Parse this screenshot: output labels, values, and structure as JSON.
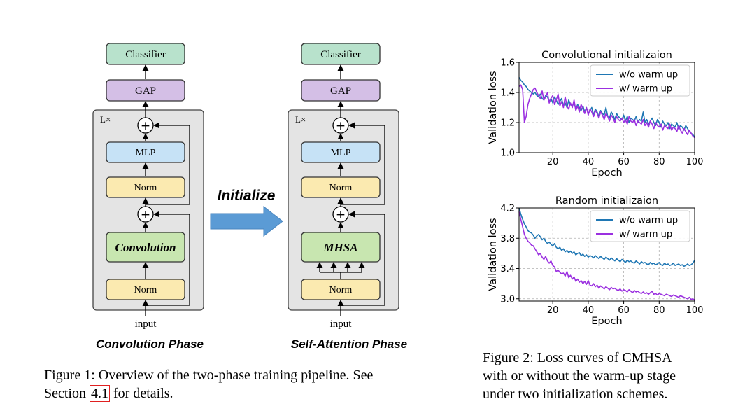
{
  "figure1": {
    "phases": [
      {
        "id": "conv",
        "title": "Convolution Phase",
        "repeat_label": "L×",
        "blocks": {
          "classifier": "Classifier",
          "gap": "GAP",
          "mlp": "MLP",
          "norm_top": "Norm",
          "mixer": "Convolution",
          "norm_bottom": "Norm"
        },
        "input_label": "input"
      },
      {
        "id": "attn",
        "title": "Self-Attention Phase",
        "repeat_label": "L×",
        "blocks": {
          "classifier": "Classifier",
          "gap": "GAP",
          "mlp": "MLP",
          "norm_top": "Norm",
          "mixer": "MHSA",
          "norm_bottom": "Norm"
        },
        "input_label": "input"
      }
    ],
    "arrow_label": "Initialize",
    "plus_symbol": "+",
    "caption_prefix": "Figure 1:  Overview of the two-phase training pipeline.  See Section",
    "caption_ref": "4.1",
    "caption_suffix": " for details.",
    "colors": {
      "classifier": "#b8e2cc",
      "gap": "#d4bfe6",
      "mlp": "#c6e2f6",
      "norm": "#fbeab0",
      "mixer": "#c8e6b0",
      "panel": "#e4e4e4",
      "arrow": "#5b9bd5"
    }
  },
  "chart_data": [
    {
      "type": "line",
      "title": "Convolutional initializaion",
      "xlabel": "Epoch",
      "ylabel": "Validation loss",
      "xlim": [
        1,
        100
      ],
      "ylim": [
        1.0,
        1.6
      ],
      "xticks": [
        20,
        40,
        60,
        80,
        100
      ],
      "yticks": [
        1.0,
        1.2,
        1.4,
        1.6
      ],
      "grid": true,
      "legend_position": "top-right",
      "series": [
        {
          "name": "w/o warm up",
          "color": "#1f77b4",
          "values": [
            1.5,
            1.48,
            1.47,
            1.45,
            1.44,
            1.42,
            1.41,
            1.4,
            1.39,
            1.4,
            1.38,
            1.37,
            1.39,
            1.36,
            1.35,
            1.38,
            1.37,
            1.34,
            1.36,
            1.33,
            1.37,
            1.35,
            1.32,
            1.34,
            1.36,
            1.31,
            1.33,
            1.3,
            1.35,
            1.32,
            1.31,
            1.33,
            1.29,
            1.32,
            1.3,
            1.28,
            1.31,
            1.27,
            1.3,
            1.26,
            1.28,
            1.3,
            1.25,
            1.29,
            1.27,
            1.24,
            1.28,
            1.26,
            1.25,
            1.3,
            1.24,
            1.23,
            1.27,
            1.25,
            1.22,
            1.26,
            1.24,
            1.23,
            1.22,
            1.25,
            1.21,
            1.24,
            1.2,
            1.23,
            1.22,
            1.21,
            1.24,
            1.2,
            1.22,
            1.21,
            1.27,
            1.2,
            1.22,
            1.19,
            1.21,
            1.23,
            1.2,
            1.18,
            1.22,
            1.2,
            1.17,
            1.21,
            1.19,
            1.18,
            1.2,
            1.16,
            1.19,
            1.18,
            1.17,
            1.2,
            1.16,
            1.18,
            1.17,
            1.15,
            1.18,
            1.16,
            1.14,
            1.13,
            1.12,
            1.1
          ]
        },
        {
          "name": "w/ warm up",
          "color": "#9b30e0",
          "values": [
            1.44,
            1.45,
            1.42,
            1.2,
            1.24,
            1.32,
            1.36,
            1.39,
            1.42,
            1.43,
            1.4,
            1.38,
            1.36,
            1.41,
            1.35,
            1.37,
            1.4,
            1.33,
            1.36,
            1.38,
            1.32,
            1.35,
            1.39,
            1.31,
            1.34,
            1.3,
            1.37,
            1.31,
            1.29,
            1.33,
            1.3,
            1.35,
            1.28,
            1.31,
            1.27,
            1.32,
            1.29,
            1.26,
            1.3,
            1.25,
            1.29,
            1.27,
            1.24,
            1.28,
            1.26,
            1.23,
            1.27,
            1.25,
            1.22,
            1.26,
            1.24,
            1.21,
            1.25,
            1.23,
            1.2,
            1.24,
            1.22,
            1.21,
            1.23,
            1.2,
            1.22,
            1.19,
            1.24,
            1.21,
            1.2,
            1.22,
            1.18,
            1.21,
            1.2,
            1.19,
            1.22,
            1.18,
            1.2,
            1.17,
            1.21,
            1.19,
            1.16,
            1.2,
            1.18,
            1.17,
            1.19,
            1.15,
            1.18,
            1.17,
            1.16,
            1.19,
            1.15,
            1.17,
            1.16,
            1.14,
            1.18,
            1.15,
            1.13,
            1.16,
            1.14,
            1.12,
            1.15,
            1.13,
            1.11,
            1.1
          ]
        }
      ]
    },
    {
      "type": "line",
      "title": "Random initializaion",
      "xlabel": "Epoch",
      "ylabel": "Validation loss",
      "xlim": [
        1,
        100
      ],
      "ylim": [
        2.97,
        4.2
      ],
      "xticks": [
        20,
        40,
        60,
        80,
        100
      ],
      "yticks": [
        3.0,
        3.4,
        3.8,
        4.2
      ],
      "grid": true,
      "legend_position": "top-right",
      "series": [
        {
          "name": "w/o warm up",
          "color": "#1f77b4",
          "values": [
            4.2,
            4.12,
            4.05,
            3.99,
            3.95,
            3.9,
            3.88,
            3.87,
            3.84,
            3.8,
            3.83,
            3.85,
            3.82,
            3.78,
            3.8,
            3.76,
            3.73,
            3.75,
            3.72,
            3.7,
            3.73,
            3.68,
            3.66,
            3.68,
            3.64,
            3.66,
            3.62,
            3.64,
            3.61,
            3.63,
            3.6,
            3.62,
            3.58,
            3.6,
            3.61,
            3.57,
            3.59,
            3.56,
            3.58,
            3.55,
            3.57,
            3.56,
            3.54,
            3.57,
            3.55,
            3.53,
            3.56,
            3.54,
            3.52,
            3.55,
            3.53,
            3.51,
            3.54,
            3.52,
            3.5,
            3.53,
            3.51,
            3.49,
            3.52,
            3.5,
            3.48,
            3.51,
            3.49,
            3.5,
            3.48,
            3.47,
            3.5,
            3.48,
            3.46,
            3.49,
            3.47,
            3.48,
            3.46,
            3.45,
            3.48,
            3.46,
            3.47,
            3.45,
            3.46,
            3.48,
            3.45,
            3.44,
            3.47,
            3.45,
            3.46,
            3.44,
            3.45,
            3.47,
            3.44,
            3.45,
            3.46,
            3.44,
            3.45,
            3.43,
            3.44,
            3.46,
            3.44,
            3.45,
            3.47,
            3.51
          ]
        },
        {
          "name": "w/ warm up",
          "color": "#9b30e0",
          "values": [
            4.15,
            4.05,
            3.95,
            3.85,
            3.8,
            3.76,
            3.74,
            3.71,
            3.7,
            3.66,
            3.62,
            3.58,
            3.6,
            3.55,
            3.52,
            3.56,
            3.5,
            3.47,
            3.5,
            3.44,
            3.42,
            3.36,
            3.38,
            3.35,
            3.33,
            3.34,
            3.3,
            3.36,
            3.28,
            3.31,
            3.26,
            3.29,
            3.23,
            3.26,
            3.22,
            3.24,
            3.2,
            3.23,
            3.19,
            3.24,
            3.18,
            3.17,
            3.2,
            3.16,
            3.18,
            3.14,
            3.17,
            3.15,
            3.13,
            3.16,
            3.14,
            3.12,
            3.15,
            3.13,
            3.14,
            3.12,
            3.11,
            3.13,
            3.1,
            3.12,
            3.11,
            3.09,
            3.12,
            3.1,
            3.08,
            3.11,
            3.09,
            3.1,
            3.08,
            3.07,
            3.09,
            3.07,
            3.08,
            3.06,
            3.08,
            3.1,
            3.06,
            3.07,
            3.05,
            3.07,
            3.06,
            3.05,
            3.04,
            3.06,
            3.05,
            3.04,
            3.03,
            3.05,
            3.04,
            3.03,
            3.02,
            3.04,
            3.03,
            3.02,
            3.01,
            3.0,
            3.02,
            2.99,
            3.0,
            2.98
          ]
        }
      ]
    }
  ],
  "figure2": {
    "caption_lines": [
      "Figure 2: Loss curves of CMHSA",
      "with or without the warm-up stage",
      "under two initialization schemes."
    ]
  }
}
